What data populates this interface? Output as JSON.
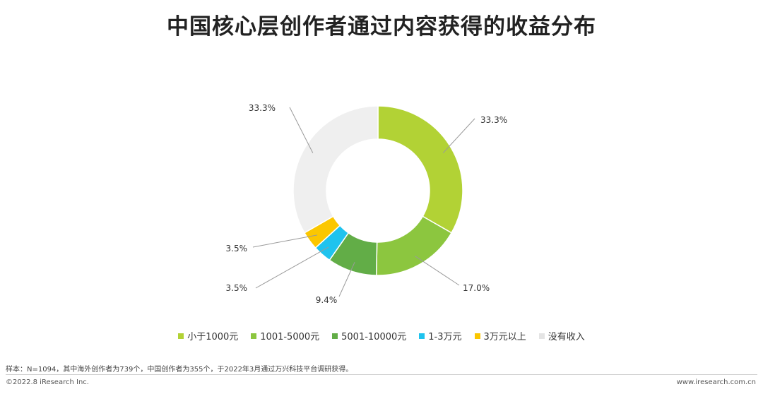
{
  "title": "中国核心层创作者通过内容获得的收益分布",
  "chart_data": {
    "type": "pie",
    "donut": true,
    "title": "中国核心层创作者通过内容获得的收益分布",
    "slices": [
      {
        "name": "小于1000元",
        "value": 33.3,
        "label": "33.3%",
        "color": "#b2d235"
      },
      {
        "name": "1001-5000元",
        "value": 17.0,
        "label": "17.0%",
        "color": "#8cc63f"
      },
      {
        "name": "5001-10000元",
        "value": 9.4,
        "label": "9.4%",
        "color": "#62ad47"
      },
      {
        "name": "1-3万元",
        "value": 3.5,
        "label": "3.5%",
        "color": "#1fc3ee"
      },
      {
        "name": "3万元以上",
        "value": 3.5,
        "label": "3.5%",
        "color": "#fbc700"
      },
      {
        "name": "没有收入",
        "value": 33.3,
        "label": "33.3%",
        "color": "#efefef"
      }
    ],
    "legend_position": "bottom"
  },
  "note": "样本：N=1094，其中海外创作者为739个，中国创作者为355个，于2022年3月通过万兴科技平台调研获得。",
  "copyright": "©2022.8 iResearch Inc.",
  "site": "www.iresearch.com.cn"
}
